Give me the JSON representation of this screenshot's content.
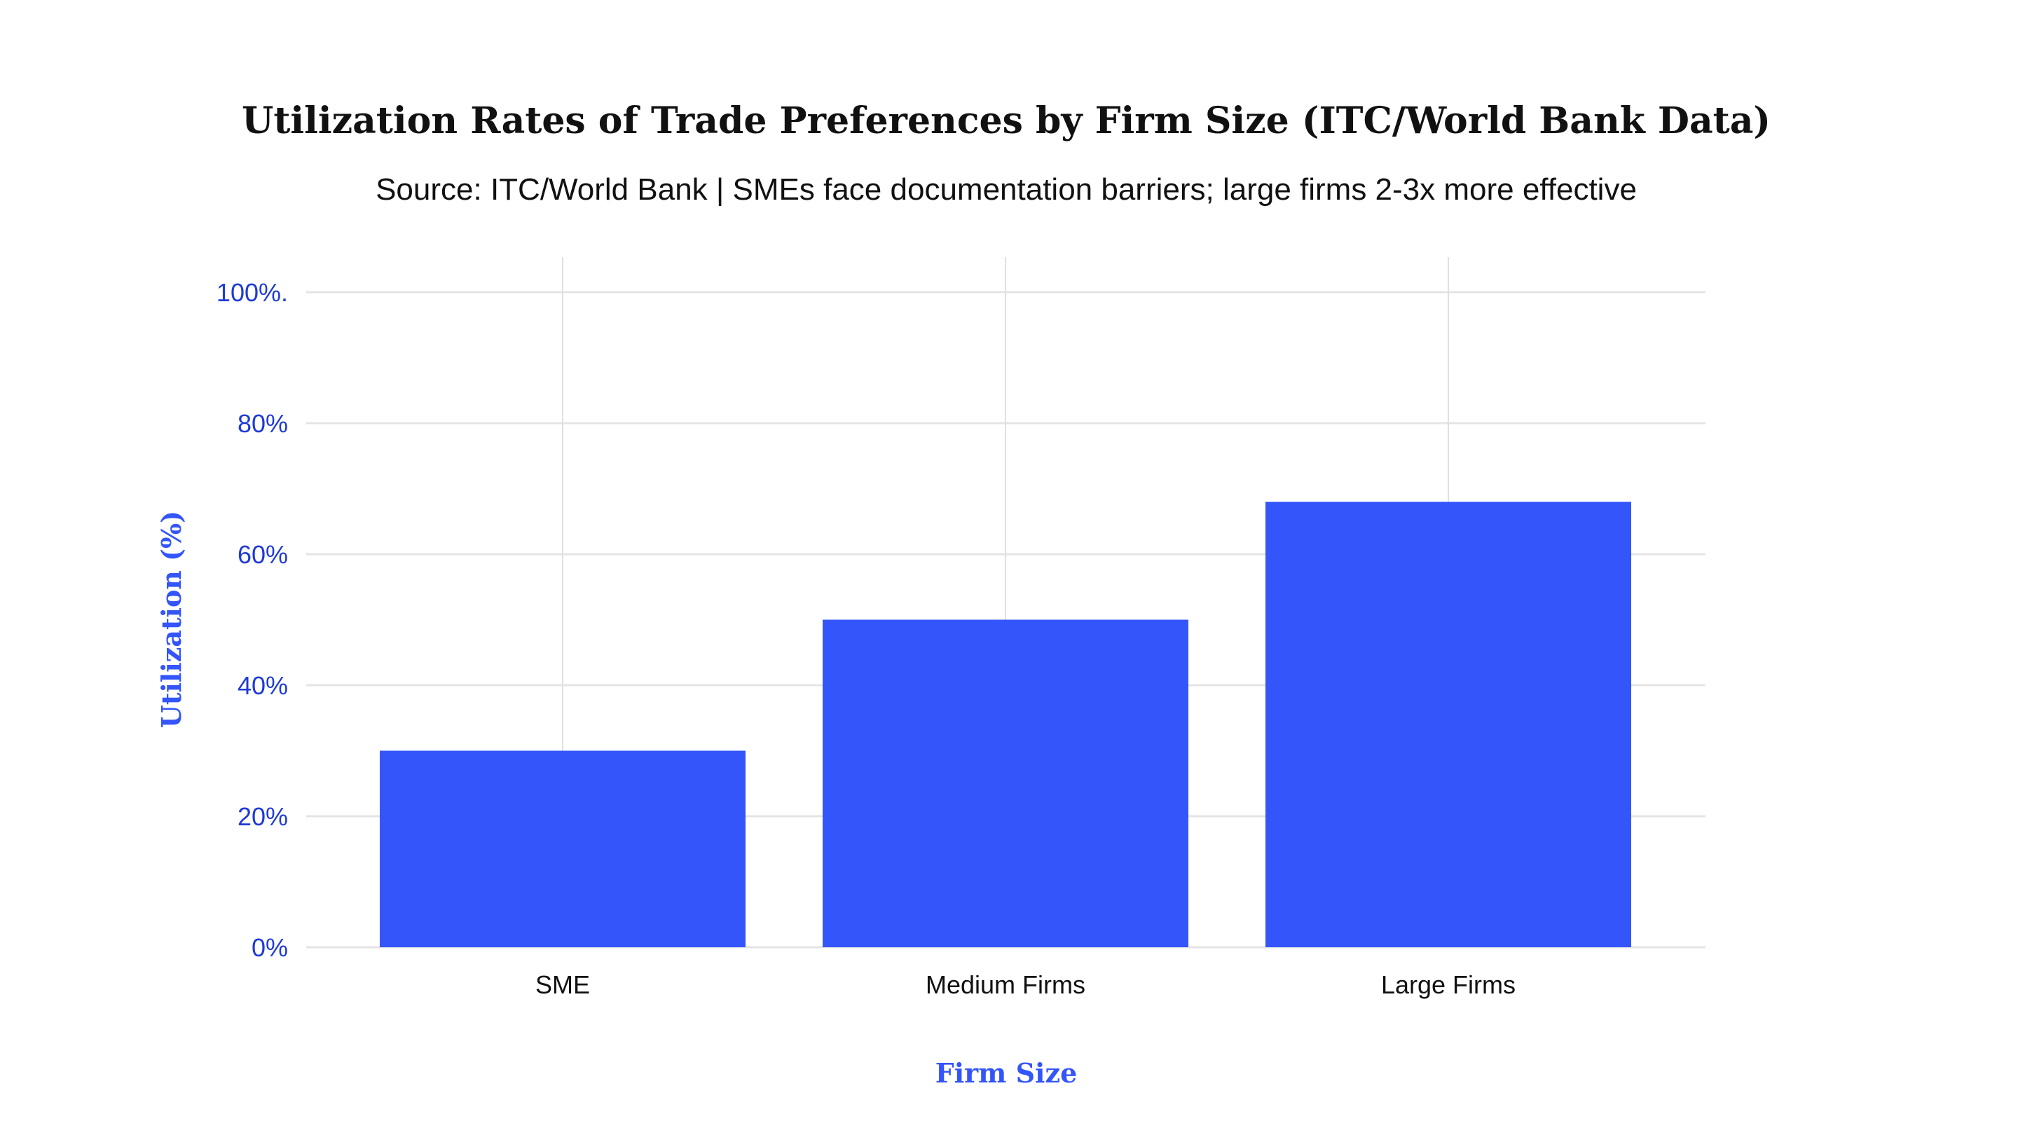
{
  "chart_data": {
    "type": "bar",
    "title": "Utilization Rates of Trade Preferences by Firm Size (ITC/World Bank Data)",
    "subtitle": "Source: ITC/World Bank | SMEs face documentation barriers; large firms 2-3x more effective",
    "xlabel": "Firm Size",
    "ylabel": "Utilization (%)",
    "categories": [
      "SME",
      "Medium Firms",
      "Large Firms"
    ],
    "values": [
      30,
      50,
      68
    ],
    "ylim": [
      0,
      100
    ],
    "yticks": [
      0,
      20,
      40,
      60,
      80,
      100
    ],
    "ytick_labels": [
      "0%",
      "20%",
      "40%",
      "60%",
      "80%",
      "100%."
    ],
    "grid": true,
    "bar_color": "#3355F9",
    "tick_color": "#1F3BD6"
  }
}
